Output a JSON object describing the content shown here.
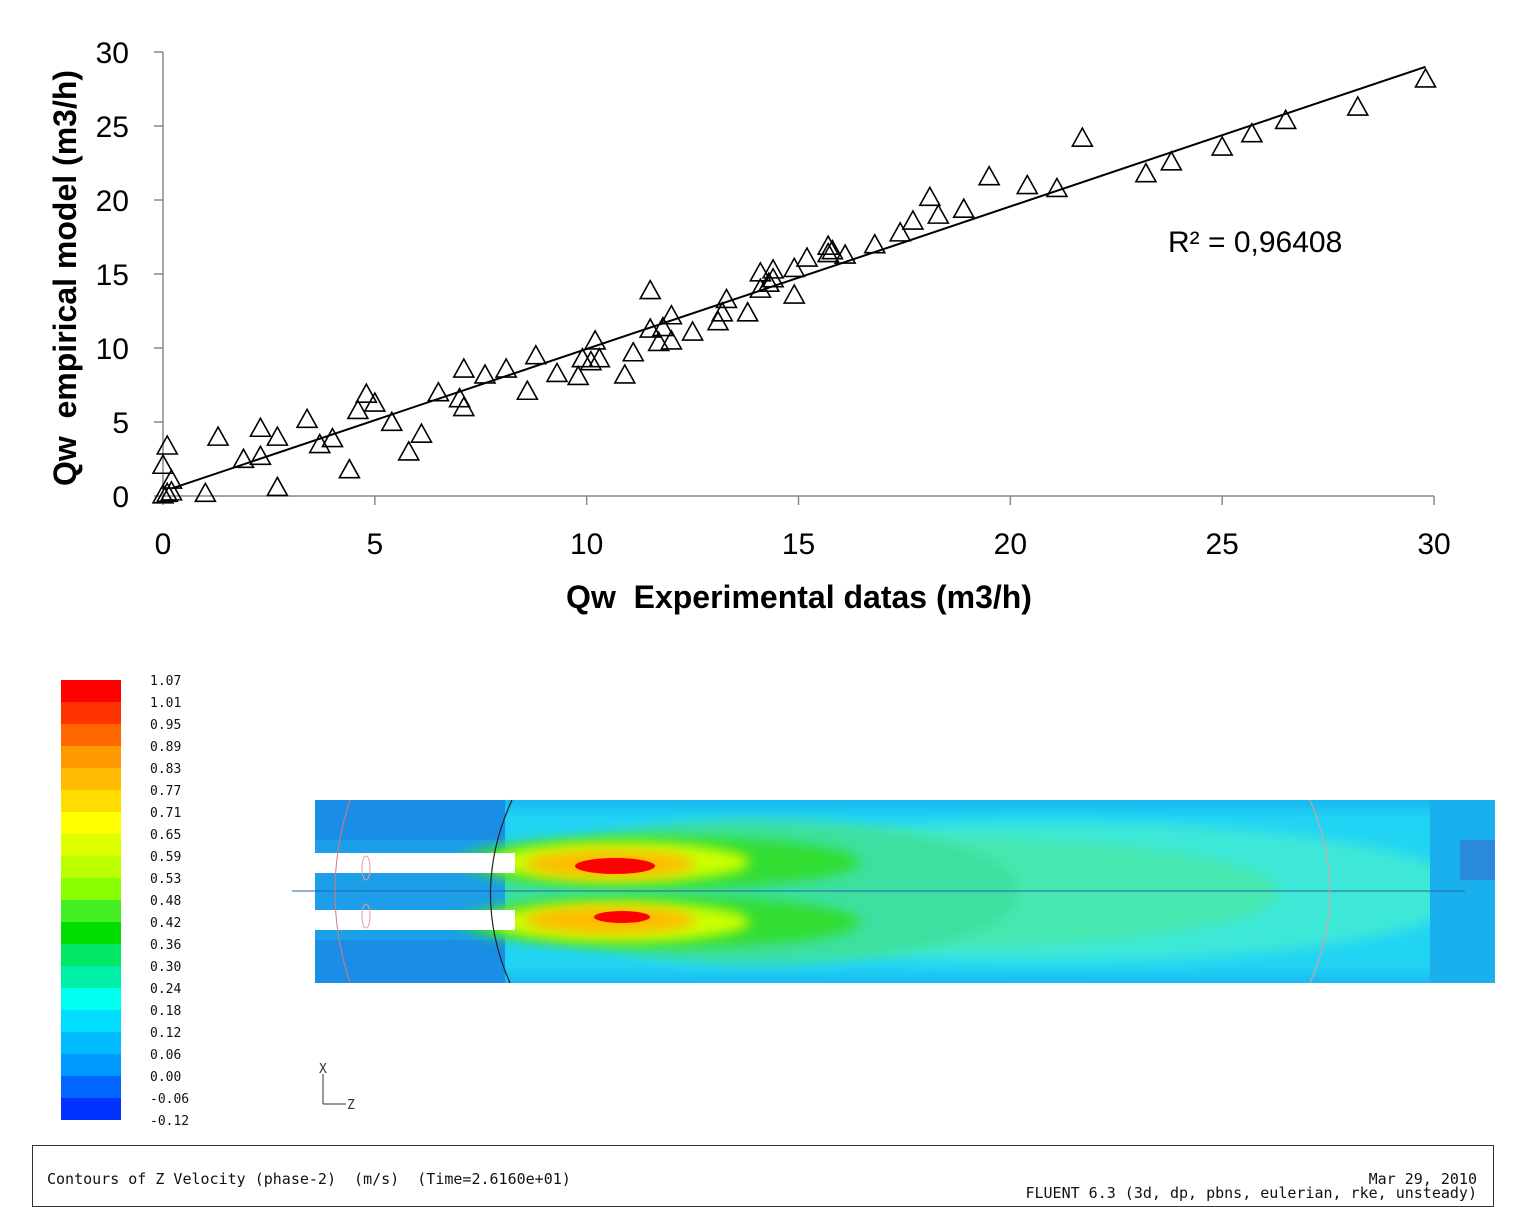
{
  "chart_data": {
    "type": "scatter",
    "xlabel": "Qw  Experimental datas (m3/h)",
    "ylabel": "Qw  empirical model (m3/h)",
    "xlim": [
      0,
      30
    ],
    "ylim": [
      0,
      30
    ],
    "xticks": [
      "0",
      "5",
      "10",
      "15",
      "20",
      "25",
      "30"
    ],
    "yticks": [
      "0",
      "5",
      "10",
      "15",
      "20",
      "25",
      "30"
    ],
    "grid": false,
    "marker": "triangle-open",
    "trendline": {
      "type": "linear",
      "x": [
        0.2,
        29.8
      ],
      "y": [
        0.5,
        29.0
      ]
    },
    "annotation": "R² = 0,96408",
    "points": [
      [
        0.0,
        0.0
      ],
      [
        0.1,
        0.1
      ],
      [
        0.2,
        0.2
      ],
      [
        0.0,
        2.0
      ],
      [
        0.1,
        3.3
      ],
      [
        0.2,
        1.0
      ],
      [
        1.0,
        0.1
      ],
      [
        1.3,
        3.9
      ],
      [
        1.9,
        2.4
      ],
      [
        2.3,
        2.6
      ],
      [
        2.3,
        4.5
      ],
      [
        2.7,
        3.9
      ],
      [
        2.7,
        0.5
      ],
      [
        3.4,
        5.1
      ],
      [
        3.7,
        3.4
      ],
      [
        4.0,
        3.8
      ],
      [
        4.4,
        1.7
      ],
      [
        4.6,
        5.7
      ],
      [
        4.8,
        6.8
      ],
      [
        5.0,
        6.2
      ],
      [
        5.4,
        4.9
      ],
      [
        5.8,
        2.9
      ],
      [
        6.1,
        4.1
      ],
      [
        6.5,
        6.9
      ],
      [
        7.0,
        6.5
      ],
      [
        7.1,
        5.9
      ],
      [
        7.1,
        8.5
      ],
      [
        7.6,
        8.1
      ],
      [
        8.1,
        8.5
      ],
      [
        8.6,
        7.0
      ],
      [
        8.8,
        9.4
      ],
      [
        9.3,
        8.2
      ],
      [
        9.8,
        8.0
      ],
      [
        9.9,
        9.2
      ],
      [
        10.1,
        9.0
      ],
      [
        10.2,
        10.4
      ],
      [
        10.3,
        9.2
      ],
      [
        10.9,
        8.1
      ],
      [
        11.1,
        9.6
      ],
      [
        11.5,
        11.2
      ],
      [
        11.5,
        13.8
      ],
      [
        11.7,
        10.3
      ],
      [
        11.8,
        11.3
      ],
      [
        12.0,
        12.1
      ],
      [
        12.0,
        10.4
      ],
      [
        12.5,
        11.0
      ],
      [
        13.1,
        11.7
      ],
      [
        13.2,
        12.3
      ],
      [
        13.3,
        13.2
      ],
      [
        13.8,
        12.3
      ],
      [
        14.1,
        13.9
      ],
      [
        14.1,
        15.0
      ],
      [
        14.3,
        14.3
      ],
      [
        14.4,
        15.2
      ],
      [
        14.4,
        14.6
      ],
      [
        14.9,
        15.3
      ],
      [
        14.9,
        13.5
      ],
      [
        15.2,
        16.0
      ],
      [
        15.7,
        16.3
      ],
      [
        15.7,
        16.8
      ],
      [
        15.8,
        16.5
      ],
      [
        16.1,
        16.2
      ],
      [
        16.8,
        16.9
      ],
      [
        17.4,
        17.7
      ],
      [
        17.7,
        18.5
      ],
      [
        18.1,
        20.1
      ],
      [
        18.3,
        18.9
      ],
      [
        18.9,
        19.3
      ],
      [
        19.5,
        21.5
      ],
      [
        20.4,
        20.9
      ],
      [
        21.1,
        20.7
      ],
      [
        21.7,
        24.1
      ],
      [
        23.2,
        21.7
      ],
      [
        23.8,
        22.5
      ],
      [
        25.0,
        23.5
      ],
      [
        25.7,
        24.4
      ],
      [
        26.5,
        25.3
      ],
      [
        28.2,
        26.2
      ],
      [
        29.8,
        28.1
      ]
    ]
  },
  "contour_plot": {
    "legend_values": [
      "1.07",
      "1.01",
      "0.95",
      "0.89",
      "0.83",
      "0.77",
      "0.71",
      "0.65",
      "0.59",
      "0.53",
      "0.48",
      "0.42",
      "0.36",
      "0.30",
      "0.24",
      "0.18",
      "0.12",
      "0.06",
      "0.00",
      "-0.06",
      "-0.12"
    ],
    "legend_colors": [
      "#ff0000",
      "#ff3300",
      "#ff6600",
      "#ff9900",
      "#ffbb00",
      "#ffdd00",
      "#ffff00",
      "#ddff00",
      "#bbff00",
      "#88ff00",
      "#44ee22",
      "#00dd00",
      "#00e866",
      "#00f0aa",
      "#00ffee",
      "#00ddff",
      "#00bbff",
      "#0099ff",
      "#0066ff",
      "#0033ff",
      "#0000ff"
    ],
    "axis_x_label": "X",
    "axis_z_label": "Z",
    "caption": "Contours of Z Velocity (phase-2)  (m/s)  (Time=2.6160e+01)",
    "date": "Mar 29, 2010",
    "solver": "FLUENT 6.3 (3d, dp, pbns, eulerian, rke, unsteady)"
  }
}
